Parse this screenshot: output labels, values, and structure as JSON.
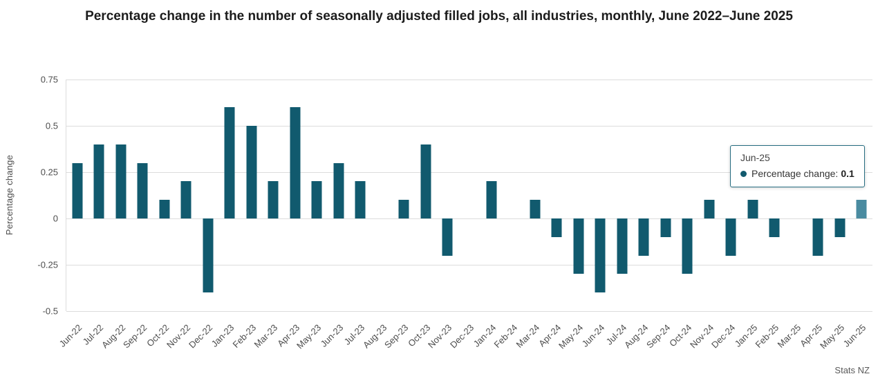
{
  "title": "Percentage change in the number of seasonally adjusted filled jobs, all industries, monthly, June 2022–June 2025",
  "source": "Stats NZ",
  "colors": {
    "bar": "#115a6e",
    "bar_highlight": "#4a8ba0",
    "tooltip_border": "#256c80",
    "gridline": "#dcdcdc",
    "axis_text": "#4d4d4d"
  },
  "tooltip": {
    "label": "Jun-25",
    "series_label": "Percentage change:",
    "value": "0.1"
  },
  "chart_data": {
    "type": "bar",
    "title": "Percentage change in the number of seasonally adjusted filled jobs, all industries, monthly, June 2022–June 2025",
    "xlabel": "",
    "ylabel": "Percentage change",
    "ylim": [
      -0.5,
      0.75
    ],
    "yticks": [
      0.75,
      0.5,
      0.25,
      0,
      -0.25,
      -0.5
    ],
    "grid": true,
    "legend": false,
    "categories": [
      "Jun-22",
      "Jul-22",
      "Aug-22",
      "Sep-22",
      "Oct-22",
      "Nov-22",
      "Dec-22",
      "Jan-23",
      "Feb-23",
      "Mar-23",
      "Apr-23",
      "May-23",
      "Jun-23",
      "Jul-23",
      "Aug-23",
      "Sep-23",
      "Oct-23",
      "Nov-23",
      "Dec-23",
      "Jan-24",
      "Feb-24",
      "Mar-24",
      "Apr-24",
      "May-24",
      "Jun-24",
      "Jul-24",
      "Aug-24",
      "Sep-24",
      "Oct-24",
      "Nov-24",
      "Dec-24",
      "Jan-25",
      "Feb-25",
      "Mar-25",
      "Apr-25",
      "May-25",
      "Jun-25"
    ],
    "values": [
      0.3,
      0.4,
      0.4,
      0.3,
      0.1,
      0.2,
      -0.4,
      0.6,
      0.5,
      0.2,
      0.6,
      0.2,
      0.3,
      0.2,
      0,
      0.1,
      0.4,
      -0.2,
      0,
      0.2,
      0,
      0.1,
      -0.1,
      -0.3,
      -0.4,
      -0.3,
      -0.2,
      -0.1,
      -0.3,
      0.1,
      -0.2,
      0.1,
      -0.1,
      0,
      -0.2,
      -0.1,
      0.1
    ],
    "highlighted_category": "Jun-25"
  }
}
